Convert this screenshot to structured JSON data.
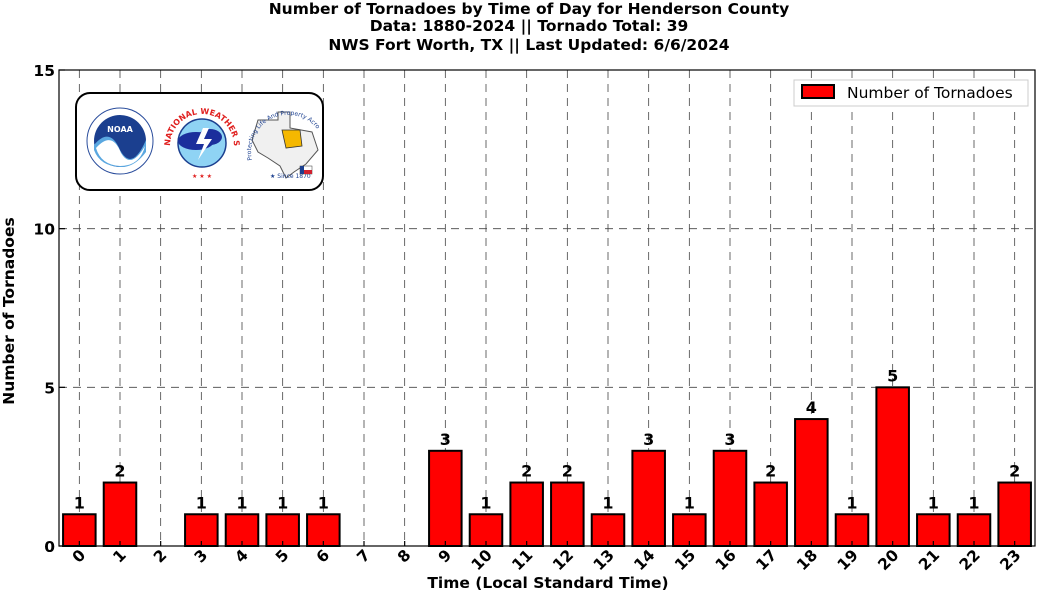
{
  "title_lines": [
    "Number of Tornadoes by Time of Day for Henderson County",
    "Data: 1880-2024 || Tornado Total: 39",
    "NWS Fort Worth, TX || Last Updated: 6/6/2024"
  ],
  "logos": {
    "noaa": "NOAA",
    "nws_arc": "NATIONAL WEATHER SERVICE",
    "nws_star": "★ ★ ★",
    "wfo_arc": "Protecting Life And Property Across North Texas",
    "wfo_since": "★ Since 1870"
  },
  "colors": {
    "bar": "#ff0000",
    "bar_edge": "#000000",
    "grid": "#444444"
  },
  "chart_data": {
    "type": "bar",
    "xlabel": "Time (Local Standard Time)",
    "ylabel": "Number of Tornadoes",
    "categories": [
      "0",
      "1",
      "2",
      "3",
      "4",
      "5",
      "6",
      "7",
      "8",
      "9",
      "10",
      "11",
      "12",
      "13",
      "14",
      "15",
      "16",
      "17",
      "18",
      "19",
      "20",
      "21",
      "22",
      "23"
    ],
    "series": [
      {
        "name": "Number of Tornadoes",
        "values": [
          1,
          2,
          0,
          1,
          1,
          1,
          1,
          0,
          0,
          3,
          1,
          2,
          2,
          1,
          3,
          1,
          3,
          2,
          4,
          1,
          5,
          1,
          1,
          2
        ]
      }
    ],
    "ylim": [
      0,
      15
    ],
    "yticks": [
      0,
      5,
      10,
      15
    ],
    "grid": true,
    "legend_position": "top-right"
  }
}
